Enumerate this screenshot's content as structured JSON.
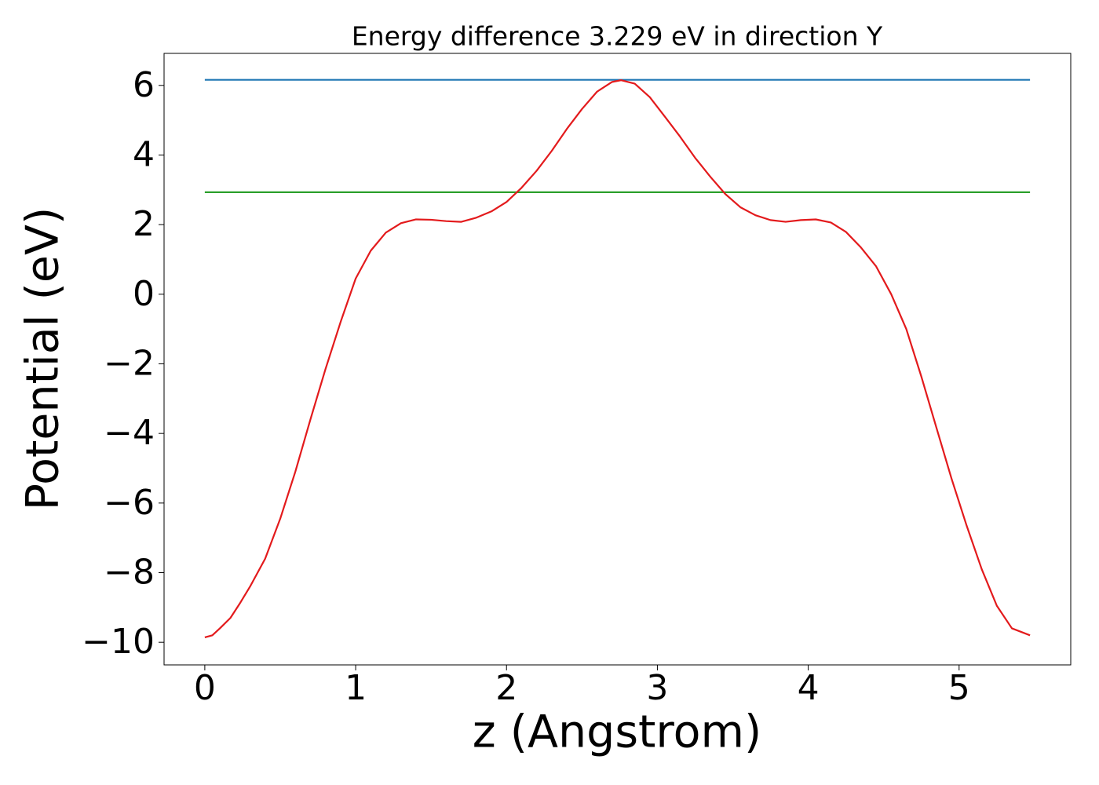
{
  "chart_data": {
    "type": "line",
    "title": "Energy difference 3.229 eV in direction Y",
    "x_label": "z (Angstrom)",
    "y_label": "Potential (eV)",
    "xlim": [
      -0.27,
      5.74
    ],
    "ylim": [
      -10.65,
      6.92
    ],
    "xticks": [
      0,
      1,
      2,
      3,
      4,
      5
    ],
    "yticks": [
      {
        "value": -10,
        "label": "−10"
      },
      {
        "value": -8,
        "label": "−8"
      },
      {
        "value": -6,
        "label": "−6"
      },
      {
        "value": -4,
        "label": "−4"
      },
      {
        "value": -2,
        "label": "−2"
      },
      0,
      2,
      4,
      6
    ],
    "grid": false,
    "series": [
      {
        "color": "#1f77b4",
        "x": [
          0,
          5.47
        ],
        "values": [
          6.16,
          6.16
        ]
      },
      {
        "color": "#2ca02c",
        "x": [
          0,
          5.47
        ],
        "values": [
          2.93,
          2.93
        ]
      },
      {
        "color": "#e31a1c",
        "x": [
          0,
          0.05,
          0.1,
          0.17,
          0.23,
          0.3,
          0.4,
          0.5,
          0.6,
          0.7,
          0.8,
          0.9,
          1.0,
          1.1,
          1.2,
          1.3,
          1.4,
          1.5,
          1.6,
          1.7,
          1.8,
          1.9,
          2.0,
          2.1,
          2.2,
          2.3,
          2.4,
          2.5,
          2.6,
          2.7,
          2.76,
          2.85,
          2.95,
          3.05,
          3.15,
          3.25,
          3.35,
          3.45,
          3.55,
          3.65,
          3.75,
          3.85,
          3.95,
          4.05,
          4.15,
          4.25,
          4.35,
          4.45,
          4.55,
          4.65,
          4.75,
          4.85,
          4.95,
          5.05,
          5.15,
          5.25,
          5.35,
          5.47
        ],
        "values": [
          -9.86,
          -9.8,
          -9.6,
          -9.3,
          -8.9,
          -8.4,
          -7.6,
          -6.45,
          -5.1,
          -3.6,
          -2.15,
          -0.8,
          0.45,
          1.25,
          1.77,
          2.04,
          2.15,
          2.14,
          2.1,
          2.08,
          2.2,
          2.38,
          2.65,
          3.06,
          3.55,
          4.12,
          4.75,
          5.32,
          5.82,
          6.1,
          6.15,
          6.05,
          5.66,
          5.1,
          4.53,
          3.92,
          3.38,
          2.88,
          2.5,
          2.27,
          2.13,
          2.08,
          2.13,
          2.15,
          2.06,
          1.79,
          1.34,
          0.8,
          0,
          -1.0,
          -2.37,
          -3.84,
          -5.3,
          -6.65,
          -7.9,
          -8.95,
          -9.6,
          -9.8
        ]
      }
    ]
  }
}
